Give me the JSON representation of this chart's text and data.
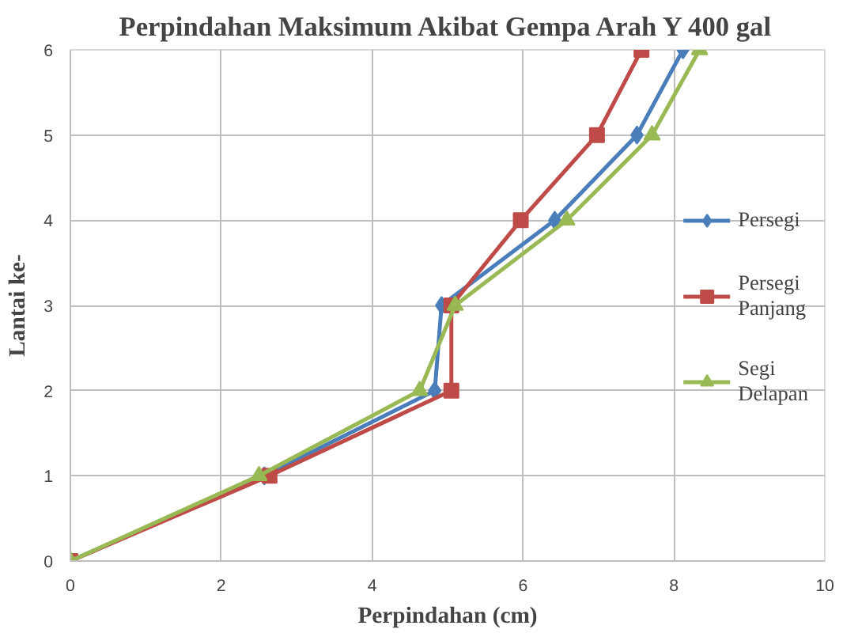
{
  "chart_data": {
    "type": "line",
    "title": "Perpindahan Maksimum Akibat Gempa Arah Y 400 gal",
    "xlabel": "Perpindahan (cm)",
    "ylabel": "Lantai ke-",
    "series": [
      {
        "name": "Persegi",
        "color": "#4a7ebb",
        "marker": "diamond",
        "x": [
          0,
          2.57,
          4.83,
          4.92,
          6.42,
          7.51,
          8.12
        ],
        "values": [
          0,
          1,
          2,
          3,
          4,
          5,
          6
        ]
      },
      {
        "name": "Persegi Panjang",
        "color": "#be4b48",
        "marker": "square",
        "x": [
          0,
          2.64,
          5.05,
          5.05,
          5.97,
          6.98,
          7.57
        ],
        "values": [
          0,
          1,
          2,
          3,
          4,
          5,
          6
        ]
      },
      {
        "name": "Segi Delapan",
        "color": "#98b954",
        "marker": "triangle",
        "x": [
          0,
          2.5,
          4.63,
          5.1,
          6.58,
          7.71,
          8.34
        ],
        "values": [
          0,
          1,
          2,
          3,
          4,
          5,
          6
        ]
      }
    ],
    "xlim": [
      0,
      10
    ],
    "xticks": [
      0,
      2,
      4,
      6,
      8,
      10
    ],
    "ylim": [
      0,
      6
    ],
    "yticks": [
      0,
      1,
      2,
      3,
      4,
      5,
      6
    ],
    "grid": true,
    "legend": "right"
  }
}
